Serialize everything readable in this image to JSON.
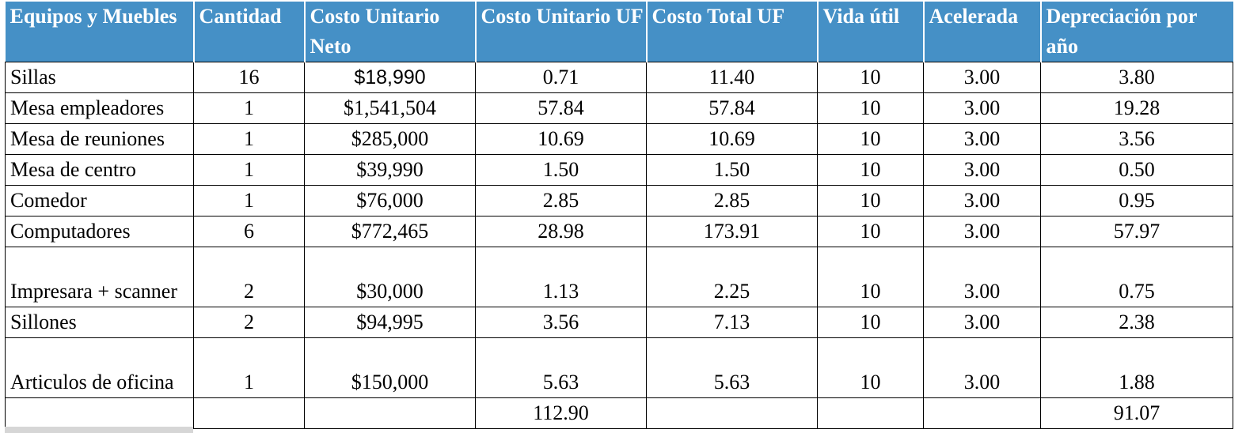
{
  "columns": [
    "Equipos y Muebles",
    "Cantidad",
    "Costo Unitario Neto",
    "Costo Unitario UF",
    "Costo Total UF",
    "Vida útil",
    "Acelerada",
    "Depreciación por año"
  ],
  "rows": [
    {
      "item": "Sillas",
      "cantidad": "16",
      "costo_neto": "$18,990",
      "costo_unitario_uf": "0.71",
      "costo_total_uf": "11.40",
      "vida_util": "10",
      "acelerada": "3.00",
      "depreciacion": "3.80"
    },
    {
      "item": "Mesa empleadores",
      "cantidad": "1",
      "costo_neto": "$1,541,504",
      "costo_unitario_uf": "57.84",
      "costo_total_uf": "57.84",
      "vida_util": "10",
      "acelerada": "3.00",
      "depreciacion": "19.28"
    },
    {
      "item": "Mesa de reuniones",
      "cantidad": "1",
      "costo_neto": "$285,000",
      "costo_unitario_uf": "10.69",
      "costo_total_uf": "10.69",
      "vida_util": "10",
      "acelerada": "3.00",
      "depreciacion": "3.56"
    },
    {
      "item": "Mesa de centro",
      "cantidad": "1",
      "costo_neto": "$39,990",
      "costo_unitario_uf": "1.50",
      "costo_total_uf": "1.50",
      "vida_util": "10",
      "acelerada": "3.00",
      "depreciacion": "0.50"
    },
    {
      "item": "Comedor",
      "cantidad": "1",
      "costo_neto": "$76,000",
      "costo_unitario_uf": "2.85",
      "costo_total_uf": "2.85",
      "vida_util": "10",
      "acelerada": "3.00",
      "depreciacion": "0.95"
    },
    {
      "item": "Computadores",
      "cantidad": "6",
      "costo_neto": "$772,465",
      "costo_unitario_uf": "28.98",
      "costo_total_uf": "173.91",
      "vida_util": "10",
      "acelerada": "3.00",
      "depreciacion": "57.97"
    },
    {
      "item": "Impresara + scanner",
      "cantidad": "2",
      "costo_neto": "$30,000",
      "costo_unitario_uf": "1.13",
      "costo_total_uf": "2.25",
      "vida_util": "10",
      "acelerada": "3.00",
      "depreciacion": "0.75"
    },
    {
      "item": "Sillones",
      "cantidad": "2",
      "costo_neto": "$94,995",
      "costo_unitario_uf": "3.56",
      "costo_total_uf": "7.13",
      "vida_util": "10",
      "acelerada": "3.00",
      "depreciacion": "2.38"
    },
    {
      "item": "Articulos de oficina",
      "cantidad": "1",
      "costo_neto": "$150,000",
      "costo_unitario_uf": "5.63",
      "costo_total_uf": "5.63",
      "vida_util": "10",
      "acelerada": "3.00",
      "depreciacion": "1.88"
    }
  ],
  "totals": {
    "costo_unitario_uf": "112.90",
    "depreciacion": "91.07"
  },
  "colors": {
    "header_bg": "#4590c6",
    "header_text": "#ffffff",
    "grid": "#000000"
  }
}
